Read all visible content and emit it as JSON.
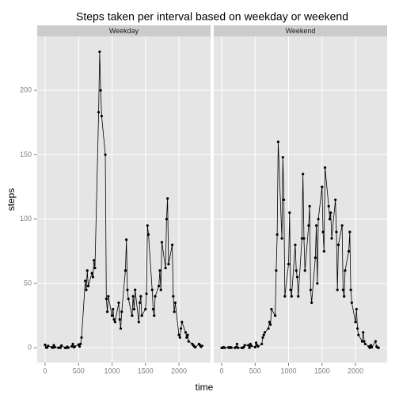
{
  "chart_data": {
    "type": "line",
    "title": "Steps taken per interval based on weekday or weekend",
    "xlabel": "time",
    "ylabel": "steps",
    "facet": true,
    "grid": true,
    "xlim": [
      -118,
      2473
    ],
    "xticks": [
      0,
      500,
      1000,
      1500,
      2000
    ],
    "ylim": [
      -11.5,
      241.9
    ],
    "yticks": [
      0,
      50,
      100,
      150,
      200
    ],
    "x": [
      0,
      15,
      30,
      45,
      100,
      115,
      130,
      145,
      200,
      215,
      230,
      245,
      300,
      315,
      330,
      345,
      400,
      415,
      430,
      445,
      500,
      515,
      530,
      545,
      600,
      615,
      630,
      645,
      700,
      715,
      730,
      745,
      800,
      815,
      830,
      845,
      900,
      915,
      930,
      945,
      1000,
      1015,
      1030,
      1045,
      1100,
      1115,
      1130,
      1145,
      1200,
      1215,
      1230,
      1245,
      1300,
      1315,
      1330,
      1345,
      1400,
      1415,
      1430,
      1445,
      1500,
      1515,
      1530,
      1545,
      1600,
      1615,
      1630,
      1645,
      1700,
      1715,
      1730,
      1745,
      1800,
      1815,
      1830,
      1845,
      1900,
      1915,
      1930,
      1945,
      2000,
      2015,
      2030,
      2045,
      2100,
      2115,
      2130,
      2145,
      2200,
      2215,
      2230,
      2245,
      2300,
      2315,
      2330,
      2345
    ],
    "series": [
      {
        "name": "Weekday",
        "color": "#000000",
        "values": [
          2.3,
          0.3,
          0.2,
          1.5,
          0.4,
          0.1,
          2,
          0.5,
          0,
          0.2,
          0.1,
          1.8,
          0,
          0,
          0.8,
          0.1,
          1.2,
          3,
          0.5,
          1,
          2.5,
          1,
          3,
          8,
          52,
          45,
          60,
          48,
          58,
          55,
          68,
          62,
          183,
          230,
          200,
          180,
          150,
          38,
          28,
          40,
          25,
          30,
          22,
          20,
          35,
          22,
          15,
          28,
          60,
          84,
          45,
          38,
          25,
          40,
          30,
          45,
          20,
          35,
          40,
          25,
          30,
          42,
          95,
          88,
          45,
          30,
          25,
          40,
          48,
          60,
          45,
          82,
          62,
          100,
          116,
          65,
          80,
          40,
          28,
          35,
          10,
          8,
          15,
          20,
          12,
          8,
          10,
          5,
          3,
          2,
          1,
          0.5,
          3,
          2,
          0.8,
          1.5
        ]
      },
      {
        "name": "Weekend",
        "color": "#000000",
        "values": [
          0,
          0,
          0.5,
          0,
          0.3,
          0,
          0.5,
          0.1,
          0,
          0.5,
          3,
          0,
          0,
          0,
          0.5,
          2,
          2,
          0,
          3,
          1.5,
          0.5,
          4,
          2,
          1,
          3,
          8,
          10,
          12,
          15,
          20,
          18,
          30,
          25,
          60,
          88,
          160,
          85,
          148,
          115,
          40,
          65,
          105,
          45,
          40,
          80,
          60,
          55,
          40,
          85,
          135,
          85,
          60,
          95,
          110,
          45,
          35,
          70,
          95,
          50,
          100,
          125,
          90,
          75,
          140,
          110,
          100,
          105,
          85,
          115,
          90,
          45,
          80,
          95,
          45,
          40,
          60,
          75,
          90,
          45,
          35,
          20,
          30,
          15,
          10,
          5,
          12,
          5,
          3,
          1,
          0,
          2,
          0.5,
          5,
          1,
          0.3,
          0
        ]
      }
    ]
  }
}
